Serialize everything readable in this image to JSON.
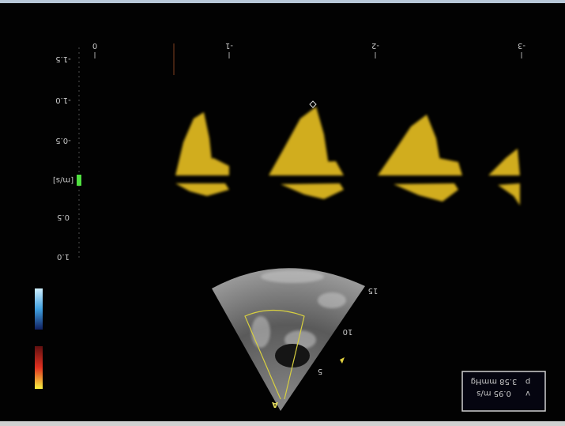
{
  "velocity_axis": {
    "labels": [
      "-1.5",
      "-1.0",
      "-0.5",
      "[m/s]",
      "0.5",
      "1.0"
    ]
  },
  "time_axis": {
    "labels": [
      "0",
      "-1",
      "-2",
      "-3"
    ]
  },
  "depth_labels": [
    "5",
    "10",
    "15"
  ],
  "probe_marker": "A",
  "measurements": [
    {
      "label": "p",
      "value": "3.58 mmHg"
    },
    {
      "label": "v",
      "value": "0.95 m/s"
    }
  ]
}
